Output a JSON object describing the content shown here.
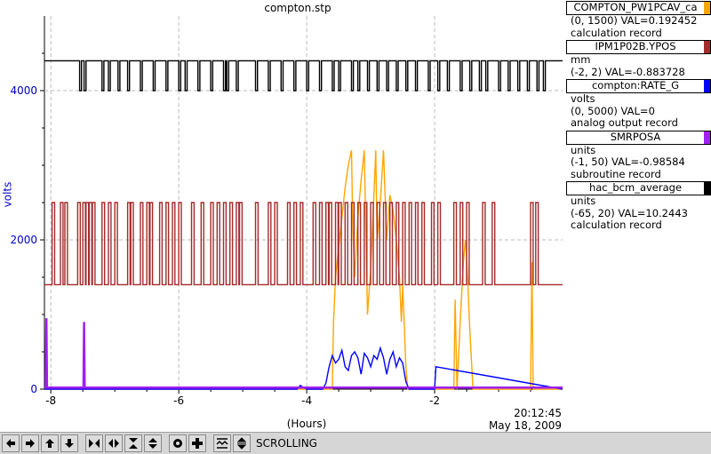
{
  "chart_data": {
    "type": "line",
    "title": "compton.stp",
    "xlabel": "(Hours)",
    "ylabel": "volts",
    "xlim": [
      -8.1,
      0
    ],
    "ylim": [
      0,
      5000
    ],
    "x_ticks": [
      -8,
      -6,
      -4,
      -2
    ],
    "y_ticks": [
      0,
      2000,
      4000
    ],
    "time_label": "20:12:45",
    "date_label": "May 18, 2009",
    "grid": true,
    "series": [
      {
        "name": "COMPTON_PW1PCAV_ca",
        "color": "#ffa500",
        "units": "",
        "range": "(0, 1500)",
        "val": "VAL=0.192452",
        "desc": "calculation record",
        "x": [
          -8.1,
          -3.6,
          -3.58,
          -3.55,
          -3.5,
          -3.45,
          -3.4,
          -3.35,
          -3.3,
          -3.28,
          -3.25,
          -3.2,
          -3.15,
          -3.1,
          -3.05,
          -3.0,
          -2.95,
          -2.92,
          -2.9,
          -2.85,
          -2.8,
          -2.75,
          -2.7,
          -2.65,
          -2.6,
          -2.55,
          -2.52,
          -2.5,
          -2.45,
          -2.42,
          -2.4,
          -2.35,
          -2.3,
          -2.28,
          -2.25,
          -2.2,
          -2.15,
          -2.1,
          -2.05,
          -2.0,
          -1.95,
          -1.9,
          -1.85,
          -1.8,
          -1.75,
          -1.72,
          -1.7,
          -1.68,
          -1.65,
          -1.6,
          -1.55,
          -1.52,
          -1.5,
          -1.45,
          -1.4,
          -1.35,
          -1.3,
          -1.25,
          -1.2,
          -1.15,
          -1.1,
          -1.05,
          -1.0,
          -0.95,
          -0.9,
          -0.5,
          -0.48,
          -0.46,
          -0.44,
          0
        ],
        "y": [
          0,
          0,
          900,
          1500,
          1900,
          2300,
          2700,
          3000,
          3200,
          2200,
          1500,
          2300,
          2800,
          3200,
          1000,
          1600,
          2600,
          3200,
          2000,
          2500,
          3200,
          2000,
          2600,
          2400,
          2000,
          1500,
          900,
          1400,
          300,
          0,
          0,
          0,
          0,
          0,
          0,
          0,
          0,
          0,
          0,
          0,
          0,
          0,
          0,
          0,
          0,
          0,
          0,
          1200,
          0,
          900,
          1700,
          2000,
          1800,
          800,
          0,
          0,
          0,
          0,
          0,
          0,
          0,
          0,
          0,
          0,
          0,
          0,
          1700,
          0,
          0,
          0
        ]
      },
      {
        "name": "IPM1P02B.YPOS",
        "color": "#a52a2a",
        "units": "mm",
        "range": "(-2, 2)",
        "val": "VAL=-0.883728",
        "desc": "",
        "low": 1400,
        "high": 2500,
        "pulses": [
          -7.98,
          -7.85,
          -7.78,
          -7.58,
          -7.5,
          -7.45,
          -7.4,
          -7.35,
          -7.2,
          -7.1,
          -7.0,
          -6.8,
          -6.75,
          -6.6,
          -6.5,
          -6.45,
          -6.3,
          -6.2,
          -6.1,
          -6.0,
          -5.8,
          -5.65,
          -5.5,
          -5.4,
          -5.3,
          -5.2,
          -5.1,
          -5.05,
          -4.8,
          -4.6,
          -4.5,
          -4.3,
          -4.2,
          -4.1,
          -3.9,
          -3.8,
          -3.7,
          -3.65,
          -3.55,
          -3.5,
          -3.4,
          -3.3,
          -3.2,
          -3.1,
          -3.0,
          -2.9,
          -2.8,
          -2.7,
          -2.6,
          -2.5,
          -2.4,
          -2.3,
          -2.2,
          -2.05,
          -1.95,
          -1.7,
          -1.6,
          -1.5,
          -1.25,
          -1.1,
          -0.5,
          -0.42
        ]
      },
      {
        "name": "compton:RATE_G",
        "color": "#0000ff",
        "units": "volts",
        "range": "(0, 5000)",
        "val": "VAL=0",
        "desc": "analog output record",
        "x": [
          -8.1,
          -4.15,
          -4.1,
          -4.05,
          -4.0,
          -3.75,
          -3.7,
          -3.65,
          -3.6,
          -3.55,
          -3.5,
          -3.45,
          -3.4,
          -3.35,
          -3.3,
          -3.25,
          -3.2,
          -3.15,
          -3.1,
          -3.05,
          -3.0,
          -2.95,
          -2.9,
          -2.85,
          -2.8,
          -2.75,
          -2.7,
          -2.65,
          -2.6,
          -2.55,
          -2.5,
          -2.45,
          -2.4,
          -2.35,
          -2.3,
          -2.0,
          -1.98,
          0
        ],
        "y": [
          0,
          0,
          50,
          20,
          0,
          0,
          80,
          300,
          450,
          350,
          400,
          520,
          300,
          250,
          450,
          500,
          420,
          200,
          480,
          420,
          300,
          450,
          400,
          550,
          420,
          200,
          400,
          500,
          300,
          420,
          350,
          100,
          0,
          0,
          0,
          0,
          300,
          0
        ]
      },
      {
        "name": "SMRPOSA",
        "color": "#a020f0",
        "units": "units",
        "range": "(-1, 50)",
        "val": "VAL=-0.98584",
        "desc": "subroutine record",
        "x": [
          -8.1,
          -8.08,
          -8.07,
          -8.06,
          -7.5,
          -7.49,
          -7.48,
          -7.47,
          0
        ],
        "y": [
          20,
          20,
          950,
          20,
          20,
          20,
          900,
          20,
          20
        ]
      },
      {
        "name": "hac_bcm_average",
        "color": "#000000",
        "units": "units",
        "range": "(-65, 20)",
        "val": "VAL=10.2443",
        "desc": "calculation record",
        "low": 4000,
        "high": 4400,
        "dips": [
          -7.55,
          -7.48,
          -7.2,
          -7.1,
          -6.95,
          -6.8,
          -6.6,
          -6.4,
          -6.2,
          -6.0,
          -5.9,
          -5.7,
          -5.5,
          -5.3,
          -5.25,
          -5.1,
          -4.8,
          -4.6,
          -4.4,
          -4.2,
          -4.0,
          -3.8,
          -3.6,
          -3.5,
          -3.3,
          -3.2,
          -3.05,
          -2.9,
          -2.75,
          -2.6,
          -2.45,
          -2.3,
          -2.1,
          -1.95,
          -1.8,
          -1.6,
          -1.45,
          -1.3,
          -1.2,
          -1.0,
          -0.85,
          -0.7,
          -0.55,
          -0.4,
          -0.3
        ]
      }
    ]
  },
  "toolbar": {
    "status": "SCROLLING",
    "buttons": [
      "arrow-left-icon",
      "arrow-right-icon",
      "arrow-up-icon",
      "arrow-down-icon",
      "zoom-in-x-icon",
      "zoom-out-x-icon",
      "zoom-in-y-icon",
      "zoom-out-y-icon",
      "stop-icon",
      "add-icon",
      "autoscale-icon",
      "zoom-out-icon"
    ]
  }
}
